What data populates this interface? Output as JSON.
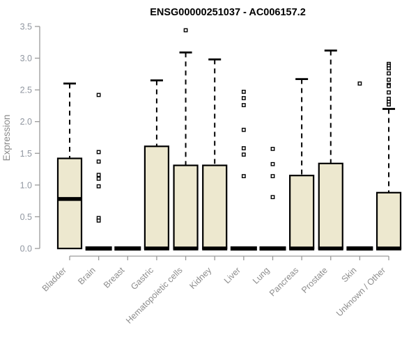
{
  "title": "ENSG00000251037 - AC006157.2",
  "colors": {
    "box_fill": "#EDE8CF",
    "box_stroke": "#000000",
    "median": "#000000",
    "whisker": "#000000",
    "axis": "#9A9A9A",
    "tick_label": "#9096A0",
    "x_label": "#8D8D8D",
    "y_title": "#8A8A8A",
    "title": "#000000",
    "outlier_fill": "#FFFFFF"
  },
  "chart_data": {
    "type": "boxplot",
    "title": "ENSG00000251037 - AC006157.2",
    "xlabel": "",
    "ylabel": "Expression",
    "ylim": [
      0,
      3.5
    ],
    "grid": false,
    "ytick_labels": [
      "0.0",
      "0.5",
      "1.0",
      "1.5",
      "2.0",
      "2.5",
      "3.0",
      "3.5"
    ],
    "ytick_values": [
      0.0,
      0.5,
      1.0,
      1.5,
      2.0,
      2.5,
      3.0,
      3.5
    ],
    "categories": [
      "Bladder",
      "Brain",
      "Breast",
      "Gastric",
      "Hematopoietic cells",
      "Kidney",
      "Liver",
      "Lung",
      "Pancreas",
      "Prostate",
      "Skin",
      "Unknown / Other"
    ],
    "series": [
      {
        "name": "Bladder",
        "whisker_low": 0,
        "q1": 0,
        "median": 0.78,
        "q3": 1.42,
        "whisker_high": 2.6,
        "outliers": []
      },
      {
        "name": "Brain",
        "whisker_low": 0,
        "q1": 0,
        "median": 0,
        "q3": 0,
        "whisker_high": 0,
        "outliers": [
          2.42,
          1.52,
          1.37,
          1.16,
          1.1,
          0.98,
          0.48,
          0.44
        ]
      },
      {
        "name": "Breast",
        "whisker_low": 0,
        "q1": 0,
        "median": 0,
        "q3": 0,
        "whisker_high": 0,
        "outliers": []
      },
      {
        "name": "Gastric",
        "whisker_low": 0,
        "q1": 0,
        "median": 0,
        "q3": 1.61,
        "whisker_high": 2.65,
        "outliers": []
      },
      {
        "name": "Hematopoietic cells",
        "whisker_low": 0,
        "q1": 0,
        "median": 0,
        "q3": 1.31,
        "whisker_high": 3.09,
        "outliers": [
          3.44
        ]
      },
      {
        "name": "Kidney",
        "whisker_low": 0,
        "q1": 0,
        "median": 0,
        "q3": 1.31,
        "whisker_high": 2.98,
        "outliers": []
      },
      {
        "name": "Liver",
        "whisker_low": 0,
        "q1": 0,
        "median": 0,
        "q3": 0,
        "whisker_high": 0,
        "outliers": [
          2.47,
          2.37,
          2.26,
          1.87,
          1.58,
          1.48,
          1.14
        ]
      },
      {
        "name": "Lung",
        "whisker_low": 0,
        "q1": 0,
        "median": 0,
        "q3": 0,
        "whisker_high": 0,
        "outliers": [
          1.57,
          1.33,
          1.14,
          0.81
        ]
      },
      {
        "name": "Pancreas",
        "whisker_low": 0,
        "q1": 0,
        "median": 0,
        "q3": 1.15,
        "whisker_high": 2.67,
        "outliers": []
      },
      {
        "name": "Prostate",
        "whisker_low": 0,
        "q1": 0,
        "median": 0,
        "q3": 1.34,
        "whisker_high": 3.12,
        "outliers": []
      },
      {
        "name": "Skin",
        "whisker_low": 0,
        "q1": 0,
        "median": 0,
        "q3": 0,
        "whisker_high": 0,
        "outliers": [
          2.6
        ]
      },
      {
        "name": "Unknown / Other",
        "whisker_low": 0,
        "q1": 0,
        "median": 0,
        "q3": 0.88,
        "whisker_high": 2.2,
        "outliers": [
          2.91,
          2.88,
          2.84,
          2.76,
          2.66,
          2.58,
          2.56,
          2.46,
          2.36,
          2.31,
          2.27
        ]
      }
    ]
  }
}
